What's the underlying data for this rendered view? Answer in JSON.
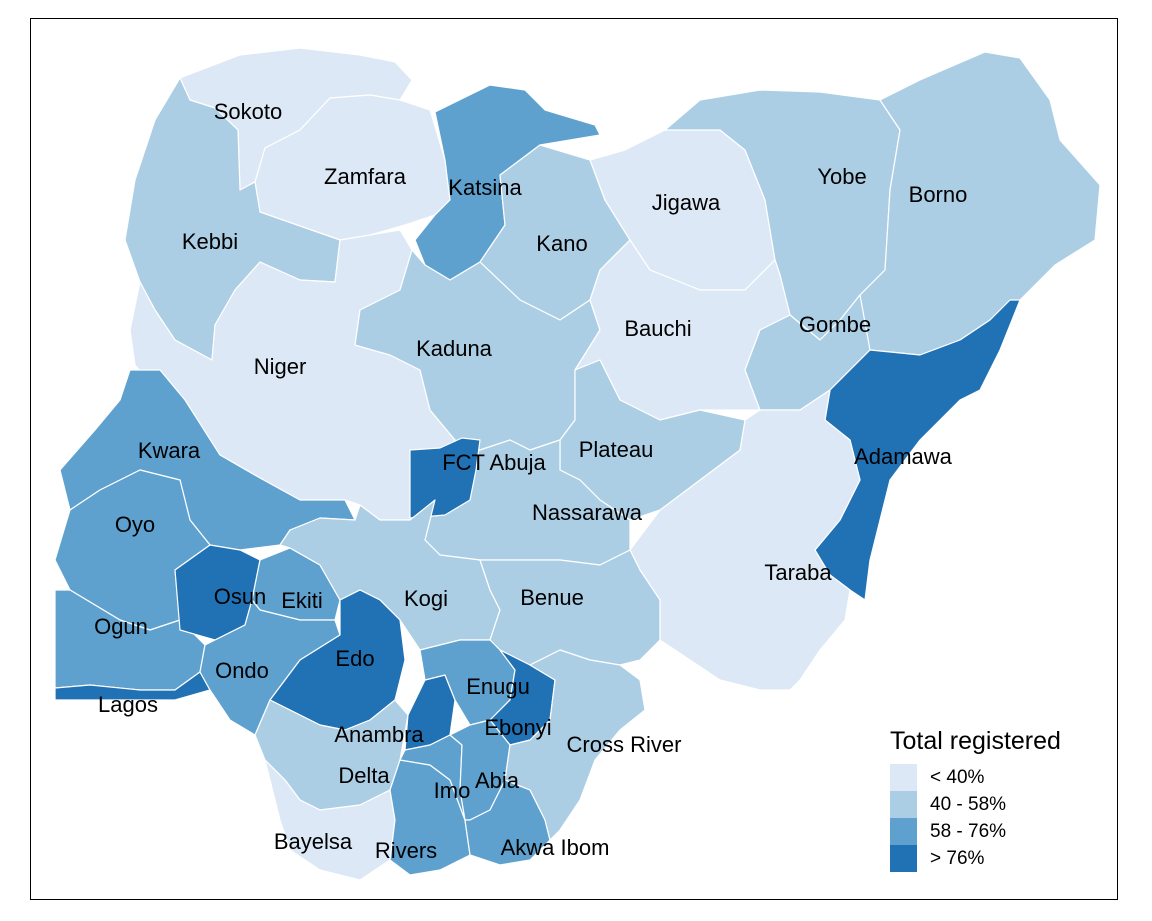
{
  "legend": {
    "title": "Total registered",
    "classes": [
      {
        "label": "< 40%",
        "color": "#dce8f5"
      },
      {
        "label": "40 - 58%",
        "color": "#abcee4"
      },
      {
        "label": "58 - 76%",
        "color": "#5ea1cf"
      },
      {
        "label": "> 76%",
        "color": "#2171b5"
      }
    ]
  },
  "states": [
    {
      "name": "Sokoto",
      "class": 0
    },
    {
      "name": "Zamfara",
      "class": 0
    },
    {
      "name": "Katsina",
      "class": 2
    },
    {
      "name": "Kebbi",
      "class": 1
    },
    {
      "name": "Kano",
      "class": 1
    },
    {
      "name": "Jigawa",
      "class": 0
    },
    {
      "name": "Yobe",
      "class": 1
    },
    {
      "name": "Borno",
      "class": 1
    },
    {
      "name": "Niger",
      "class": 0
    },
    {
      "name": "Kaduna",
      "class": 1
    },
    {
      "name": "Bauchi",
      "class": 0
    },
    {
      "name": "Gombe",
      "class": 1
    },
    {
      "name": "Adamawa",
      "class": 3
    },
    {
      "name": "Taraba",
      "class": 0
    },
    {
      "name": "Plateau",
      "class": 1
    },
    {
      "name": "Nassarawa",
      "class": 1
    },
    {
      "name": "FCT Abuja",
      "class": 3
    },
    {
      "name": "Kwara",
      "class": 2
    },
    {
      "name": "Oyo",
      "class": 2
    },
    {
      "name": "Ogun",
      "class": 2
    },
    {
      "name": "Lagos",
      "class": 3
    },
    {
      "name": "Osun",
      "class": 3
    },
    {
      "name": "Ekiti",
      "class": 2
    },
    {
      "name": "Ondo",
      "class": 2
    },
    {
      "name": "Kogi",
      "class": 1
    },
    {
      "name": "Benue",
      "class": 1
    },
    {
      "name": "Edo",
      "class": 3
    },
    {
      "name": "Delta",
      "class": 1
    },
    {
      "name": "Bayelsa",
      "class": 0
    },
    {
      "name": "Rivers",
      "class": 2
    },
    {
      "name": "Anambra",
      "class": 3
    },
    {
      "name": "Enugu",
      "class": 2
    },
    {
      "name": "Ebonyi",
      "class": 3
    },
    {
      "name": "Imo",
      "class": 2
    },
    {
      "name": "Abia",
      "class": 2
    },
    {
      "name": "Akwa Ibom",
      "class": 2
    },
    {
      "name": "Cross River",
      "class": 1
    }
  ]
}
